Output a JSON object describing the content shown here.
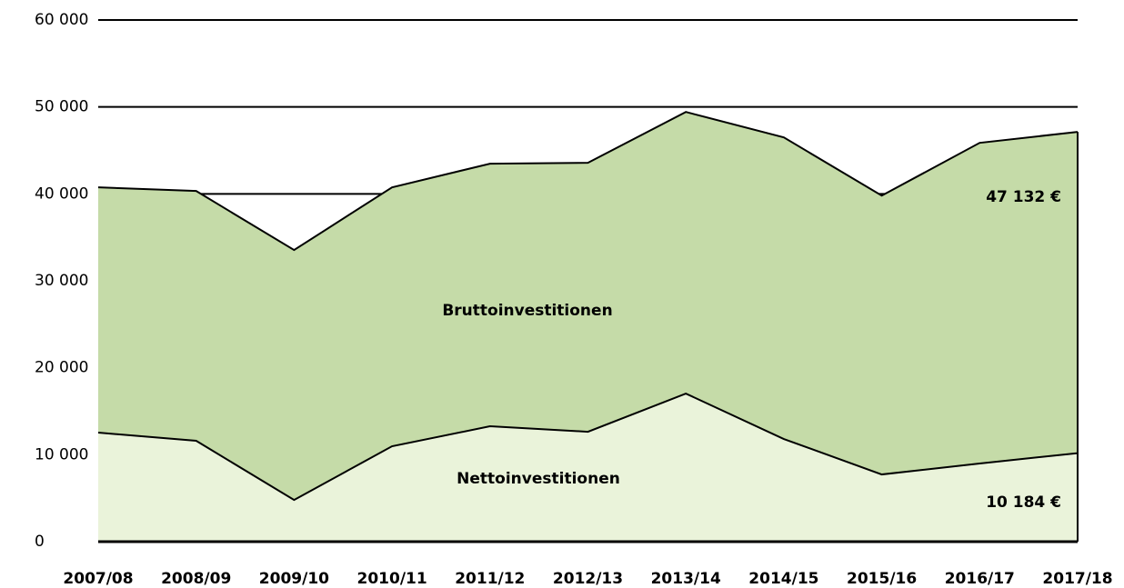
{
  "chart_data": {
    "type": "area",
    "categories": [
      "2007/08",
      "2008/09",
      "2009/10",
      "2010/11",
      "2011/12",
      "2012/13",
      "2013/14",
      "2014/15",
      "2015/16",
      "2016/17",
      "2017/18"
    ],
    "series": [
      {
        "name": "Bruttoinvestitionen",
        "color": "#c5dba8",
        "values": [
          40750,
          40330,
          33540,
          40750,
          43470,
          43570,
          49420,
          46500,
          39800,
          45870,
          47132
        ],
        "value_labels": [
          null,
          null,
          null,
          null,
          null,
          null,
          null,
          null,
          null,
          null,
          "47 132 €"
        ]
      },
      {
        "name": "Nettoinvestitionen",
        "color": "#eaf3da",
        "values": [
          12540,
          11600,
          4800,
          10970,
          13270,
          12640,
          17030,
          11810,
          7730,
          8990,
          10184
        ],
        "value_labels": [
          null,
          null,
          null,
          null,
          null,
          null,
          null,
          null,
          null,
          null,
          "10 184 €"
        ]
      }
    ],
    "ylim": [
      0,
      60000
    ],
    "yticks": [
      {
        "value": 0,
        "label": "0"
      },
      {
        "value": 10000,
        "label": "10 000"
      },
      {
        "value": 20000,
        "label": "20 000"
      },
      {
        "value": 30000,
        "label": "30 000"
      },
      {
        "value": 40000,
        "label": "40 000"
      },
      {
        "value": 50000,
        "label": "50 000"
      },
      {
        "value": 60000,
        "label": "60 000"
      }
    ],
    "grid": true
  }
}
